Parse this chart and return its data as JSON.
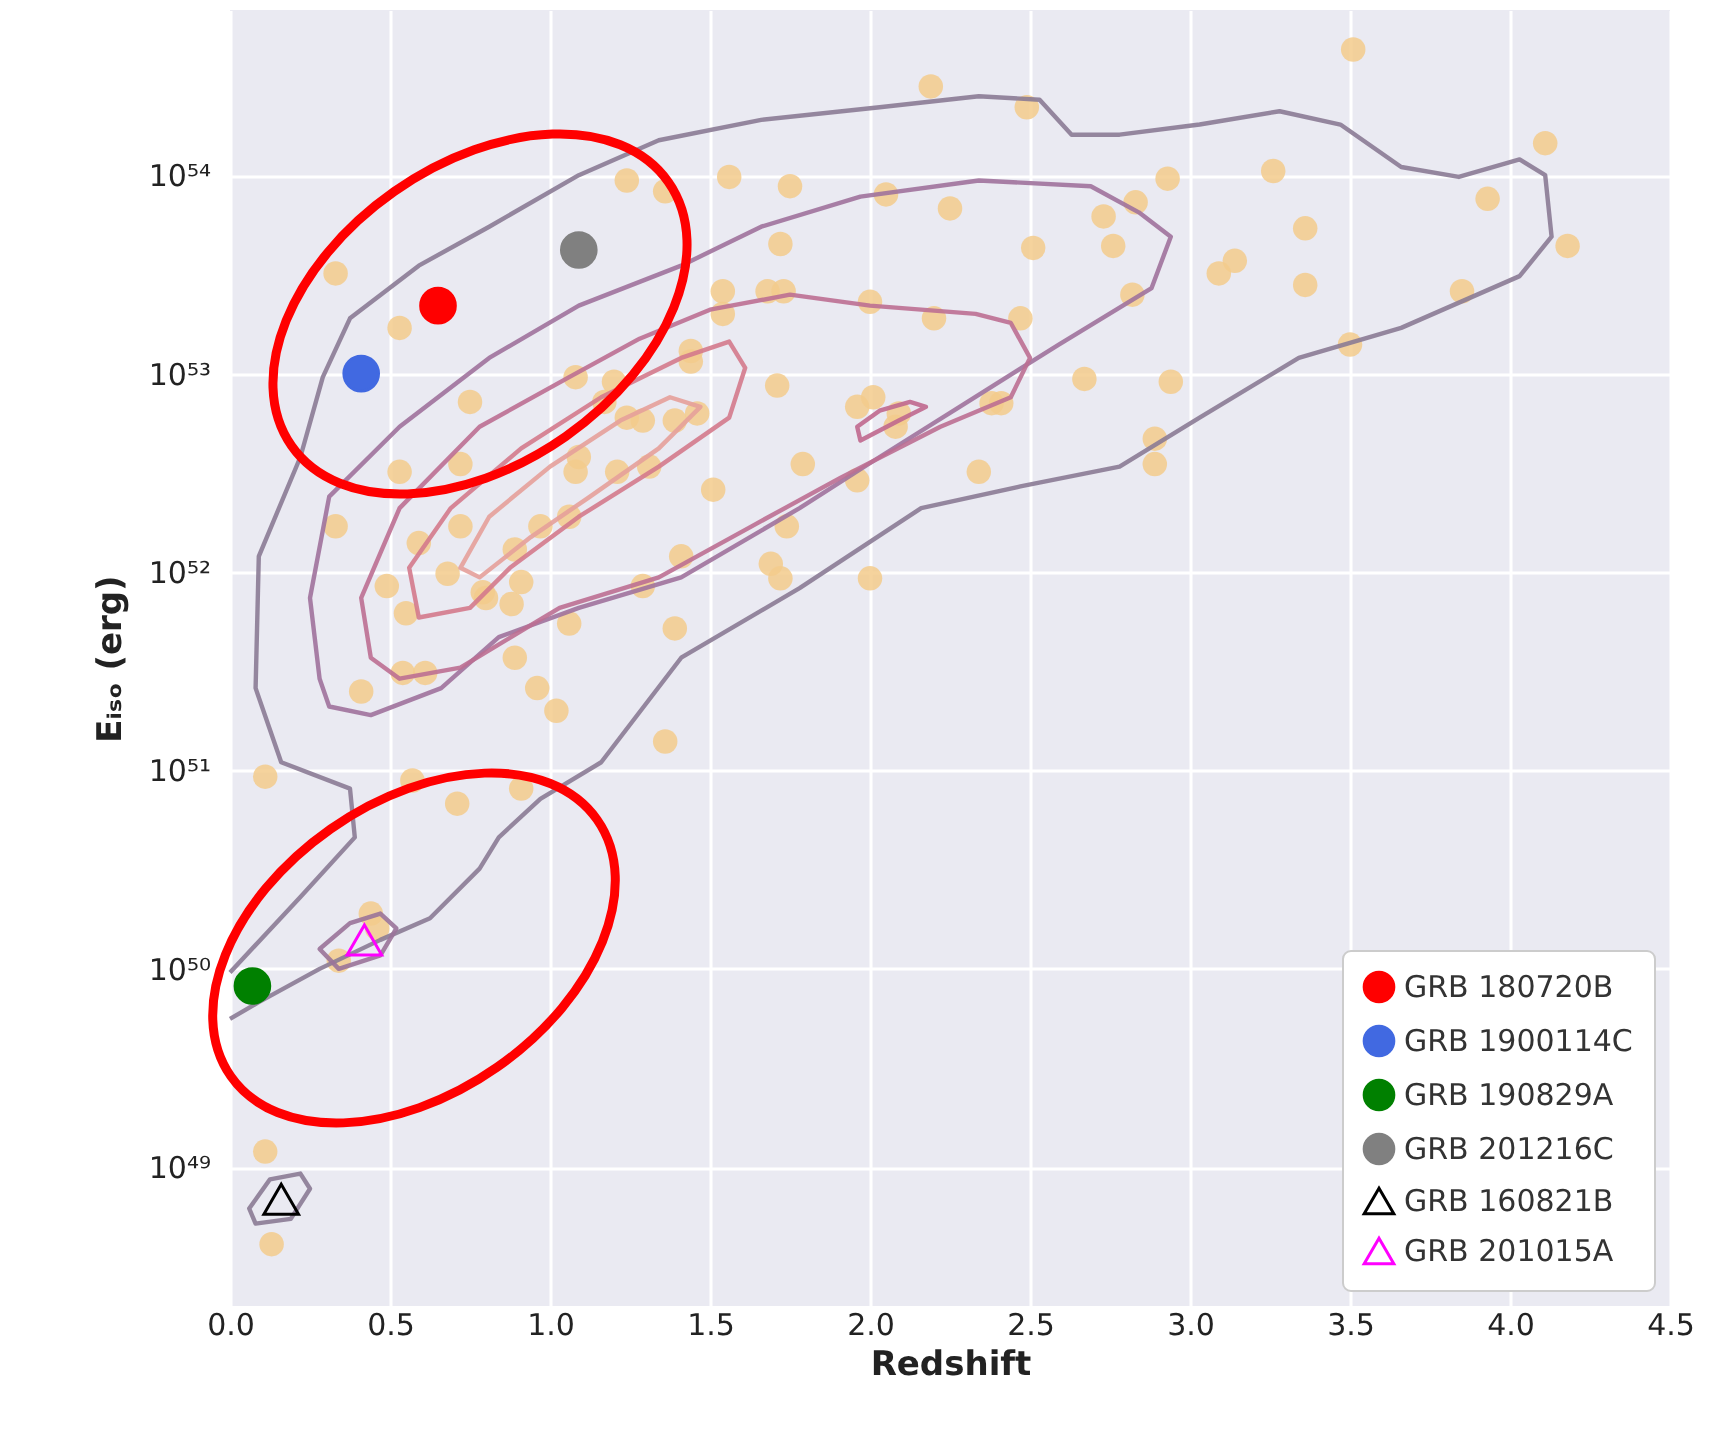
{
  "chart_data": {
    "type": "scatter",
    "xlabel": "Redshift",
    "ylabel": "Eᵢₛₒ (erg)",
    "log": "y",
    "grid": true,
    "legend": "bottom right",
    "xlim": [
      0,
      4.5
    ],
    "xticks": [
      {
        "value": 0,
        "label": "0.0"
      },
      0.5,
      {
        "value": 1,
        "label": "1.0"
      },
      1.5,
      {
        "value": 2,
        "label": "2.0"
      },
      2.5,
      {
        "value": 3,
        "label": "3.0"
      },
      3.5,
      {
        "value": 4,
        "label": "4.0"
      },
      4.5
    ],
    "ylim": [
      2e+48,
      6.8e+54
    ],
    "yticks": [
      {
        "value": 1e+49,
        "label": "10⁴⁹"
      },
      {
        "value": 1e+50,
        "label": "10⁵⁰"
      },
      {
        "value": 1e+51,
        "label": "10⁵¹"
      },
      {
        "value": 1e+52,
        "label": "10⁵²"
      },
      {
        "value": 1e+53,
        "label": "10⁵³"
      },
      {
        "value": 1e+54,
        "label": "10⁵⁴"
      }
    ],
    "series": [
      {
        "color": "#f3cb8c",
        "marker": "circle",
        "x": [
          2.19,
          1.24,
          1.36,
          1.56,
          1.75,
          2.05,
          2.25,
          1.72,
          0.33,
          1.54,
          1.68,
          1.73,
          2.0,
          2.2,
          0.53,
          1.54,
          1.44,
          1.44,
          1.08,
          1.2,
          1.17,
          1.71,
          0.75,
          1.24,
          1.29,
          1.39,
          1.46,
          1.96,
          2.01,
          2.08,
          2.09,
          0.53,
          0.72,
          1.09,
          1.08,
          1.21,
          1.31,
          1.79,
          1.51,
          1.96,
          0.33,
          0.72,
          0.59,
          0.97,
          1.06,
          1.74,
          0.89,
          1.41,
          1.69,
          1.72,
          2.0,
          0.49,
          0.68,
          0.91,
          0.79,
          0.8,
          0.88,
          1.29,
          0.55,
          1.06,
          1.39,
          0.54,
          0.61,
          0.89,
          0.41,
          0.96,
          1.02,
          1.36,
          0.11,
          0.57,
          0.71,
          0.91,
          0.44,
          0.46,
          0.34,
          0.11,
          0.13,
          2.49,
          3.51,
          4.11,
          3.26,
          2.93,
          3.93,
          2.83,
          2.73,
          4.18,
          2.51,
          2.76,
          3.36,
          3.14,
          3.09,
          2.82,
          3.36,
          3.85,
          2.47,
          3.5,
          2.67,
          2.94,
          2.38,
          2.41,
          2.89,
          2.89,
          2.34
        ],
        "values": [
          2.8e+54,
          9.4e+53,
          8.3e+53,
          9.8e+53,
          8.8e+53,
          8e+53,
          6.8e+53,
          4.5e+53,
          3.2e+53,
          2.6e+53,
          2.6e+53,
          2.6e+53,
          2.3e+53,
          1.9e+53,
          1.7e+53,
          2e+53,
          1.3e+53,
          1.15e+53,
          9.6e+52,
          9.1e+52,
          7.2e+52,
          8.7e+52,
          7.2e+52,
          6e+52,
          5.8e+52,
          5.8e+52,
          6.3e+52,
          6.8e+52,
          7.6e+52,
          5.4e+52,
          6.3e+52,
          3.2e+52,
          3.5e+52,
          3.8e+52,
          3.2e+52,
          3.2e+52,
          3.4e+52,
          3.5e+52,
          2.6e+52,
          2.9e+52,
          1.7e+52,
          1.7e+52,
          1.4e+52,
          1.7e+52,
          1.9e+52,
          1.7e+52,
          1.3e+52,
          1.2e+52,
          1.1e+52,
          9.3e+51,
          9.3e+51,
          8.5e+51,
          9.8e+51,
          8.9e+51,
          7.9e+51,
          7.4e+51,
          6.9e+51,
          8.5e+51,
          6.2e+51,
          5.5e+51,
          5.2e+51,
          3.1e+51,
          3.1e+51,
          3.7e+51,
          2.5e+51,
          2.6e+51,
          2e+51,
          1.4e+51,
          9.3e+50,
          8.9e+50,
          6.8e+50,
          8.1e+50,
          1.9e+50,
          1.6e+50,
          1.1e+50,
          1.2e+49,
          4.1e+48,
          2.2e+54,
          4.3e+54,
          1.45e+54,
          1.05e+54,
          9.6e+53,
          7.6e+53,
          7.3e+53,
          6.2e+53,
          4.4e+53,
          4.3e+53,
          4.4e+53,
          5.4e+53,
          3.7e+53,
          3.2e+53,
          2.5e+53,
          2.8e+53,
          2.6e+53,
          1.9e+53,
          1.4e+53,
          9.4e+52,
          9.1e+52,
          7.1e+52,
          7.1e+52,
          4.7e+52,
          3.5e+52,
          3.2e+52
        ]
      },
      {
        "type": "line",
        "color": "#8b7b95",
        "x": [
          0,
          0.22,
          0.39,
          0.375,
          0.16,
          0.08,
          0.09,
          0.22,
          0.29,
          0.375,
          0.59,
          0.81,
          1.09,
          1.34,
          1.66,
          2.03,
          2.34,
          2.53,
          2.63,
          2.78,
          3.03,
          3.28,
          3.47,
          3.66,
          3.84,
          4.03,
          4.11,
          4.13,
          4.03,
          3.66,
          3.34,
          3.03,
          2.78,
          2.47,
          2.16,
          1.78,
          1.41,
          1.16,
          0.97,
          0.84,
          0.78,
          0.625,
          0.47,
          0.28,
          0.09,
          0
        ],
        "values": [
          9.6e+49,
          2.3e+50,
          4.6e+50,
          8.1e+50,
          1.1e+51,
          2.6e+51,
          1.2e+52,
          3.8e+52,
          9.6e+52,
          1.9e+53,
          3.5e+53,
          5.5e+53,
          1e+54,
          1.5e+54,
          1.9e+54,
          2.2e+54,
          2.5e+54,
          2.4e+54,
          1.6e+54,
          1.6e+54,
          1.8e+54,
          2.1e+54,
          1.8e+54,
          1.1e+54,
          9.8e+53,
          1.2e+54,
          1e+54,
          4.9e+53,
          3.1e+53,
          1.7e+53,
          1.2e+53,
          6e+52,
          3.4e+52,
          2.7e+52,
          2.1e+52,
          8.3e+51,
          3.7e+51,
          1.1e+51,
          7.2e+50,
          4.6e+50,
          3.2e+50,
          1.8e+50,
          1.4e+50,
          1e+50,
          6.8e+49,
          5.6e+49
        ]
      },
      {
        "type": "line",
        "color": "#a0729c",
        "x": [
          0.28,
          0.25,
          0.31,
          0.53,
          0.81,
          1.09,
          1.41,
          1.66,
          1.97,
          2.34,
          2.69,
          2.84,
          2.94,
          2.88,
          2.59,
          2.28,
          2.03,
          1.78,
          1.41,
          1.09,
          0.84,
          0.66,
          0.44,
          0.31,
          0.28,
          0.25
        ],
        "values": [
          2.9e+51,
          7.4e+51,
          2.4e+52,
          5.4e+52,
          1.2e+53,
          2.2e+53,
          3.5e+53,
          5.5e+53,
          7.8e+53,
          9.4e+53,
          8.8e+53,
          6.5e+53,
          4.9e+53,
          2.7e+53,
          1.4e+53,
          6.8e+52,
          3.8e+52,
          2.1e+52,
          9.4e+51,
          6.6e+51,
          4.7e+51,
          2.6e+51,
          1.9e+51,
          2.1e+51,
          2.9e+51,
          7.4e+51
        ]
      },
      {
        "type": "line",
        "color": "#bd6f92",
        "x": [
          0.44,
          0.41,
          0.53,
          0.78,
          1.06,
          1.28,
          1.5,
          1.75,
          2.0,
          2.33,
          2.44,
          2.5,
          2.44,
          2.22,
          1.91,
          1.63,
          1.34,
          1.03,
          0.72,
          0.53,
          0.44,
          0.41
        ],
        "values": [
          3.7e+51,
          7.4e+51,
          2.1e+52,
          5.4e+52,
          9.6e+52,
          1.5e+53,
          2.1e+53,
          2.5e+53,
          2.2e+53,
          2e+53,
          1.8e+53,
          1.2e+53,
          7.6e+52,
          5.4e+52,
          3e+52,
          1.7e+52,
          9.4e+51,
          6.6e+51,
          3.3e+51,
          2.9e+51,
          3.7e+51,
          7.4e+51
        ]
      },
      {
        "type": "line",
        "color": "#d47a8c",
        "x": [
          0.59,
          0.56,
          0.69,
          0.91,
          1.16,
          1.41,
          1.56,
          1.61,
          1.56,
          1.34,
          1.09,
          0.875,
          0.75,
          0.59,
          0.56
        ],
        "values": [
          5.9e+51,
          1.05e+52,
          2.1e+52,
          4.2e+52,
          7.6e+52,
          1.2e+53,
          1.45e+53,
          1.07e+53,
          6e+52,
          3.4e+52,
          1.9e+52,
          1.05e+52,
          6.6e+51,
          5.9e+51,
          1.05e+52
        ]
      },
      {
        "type": "line",
        "color": "#e6a09a",
        "x": [
          0.72,
          0.81,
          1.0,
          1.22,
          1.375,
          1.47,
          1.34,
          1.125,
          0.94,
          0.78,
          0.72,
          0.81
        ],
        "values": [
          1.05e+52,
          1.9e+52,
          3.4e+52,
          5.8e+52,
          7.6e+52,
          6.8e+52,
          4.2e+52,
          2.4e+52,
          1.5e+52,
          9.4e+51,
          1.05e+52,
          1.9e+52
        ]
      },
      {
        "type": "line",
        "color": "#c0688e",
        "x": [
          1.96,
          2.03,
          2.125,
          2.175,
          2.09,
          1.97,
          1.96,
          2.03
        ],
        "values": [
          5.4e+52,
          6.5e+52,
          7.2e+52,
          6.8e+52,
          5.8e+52,
          4.6e+52,
          5.4e+52,
          6.5e+52
        ]
      },
      {
        "type": "line",
        "color": "#9a7399",
        "x": [
          0.28,
          0.375,
          0.47,
          0.52,
          0.47,
          0.34,
          0.28,
          0.375
        ],
        "values": [
          1.26e+50,
          1.7e+50,
          1.9e+50,
          1.6e+50,
          1.17e+50,
          1e+50,
          1.26e+50,
          1.7e+50
        ]
      },
      {
        "type": "line",
        "color": "#8b7b95",
        "x": [
          0.06,
          0.125,
          0.22,
          0.25,
          0.19,
          0.08,
          0.06,
          0.125
        ],
        "values": [
          6.2e+48,
          8.7e+48,
          9.3e+48,
          7.8e+48,
          5.5e+48,
          5.2e+48,
          6.2e+48,
          8.7e+48
        ]
      },
      {
        "name": "GRB 180720B",
        "color": "#ff0000",
        "marker": "circle",
        "x": [
          0.65
        ],
        "values": [
          2.2e+53
        ]
      },
      {
        "name": "GRB 1900114C",
        "color": "#4169e1",
        "marker": "circle",
        "x": [
          0.41
        ],
        "values": [
          1e+53
        ]
      },
      {
        "name": "GRB 190829A",
        "color": "#008000",
        "marker": "circle",
        "x": [
          0.07
        ],
        "values": [
          8.2e+49
        ]
      },
      {
        "name": "GRB 201216C",
        "color": "#808080",
        "marker": "circle",
        "x": [
          1.09
        ],
        "values": [
          4.2e+53
        ]
      },
      {
        "name": "GRB 160821B",
        "color": "#000000",
        "marker": "triangle",
        "x": [
          0.16
        ],
        "values": [
          6.9e+48
        ]
      },
      {
        "name": "GRB 201015A",
        "color": "#ff00ff",
        "marker": "triangle",
        "x": [
          0.42
        ],
        "values": [
          1.4e+50
        ]
      }
    ]
  }
}
